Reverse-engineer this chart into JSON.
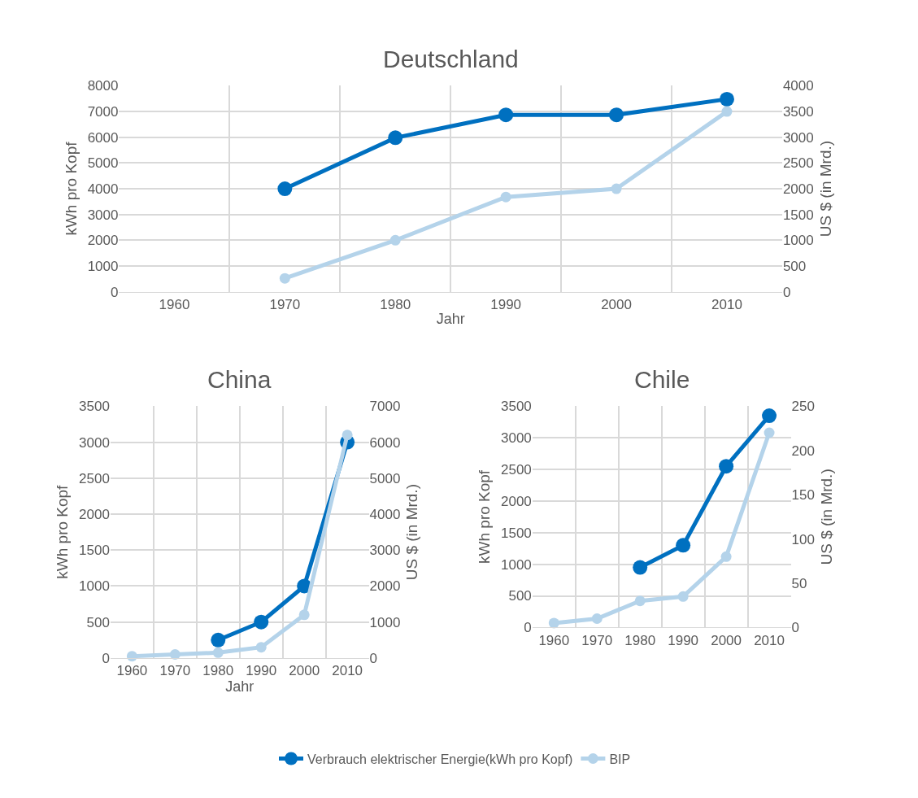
{
  "chart_data": [
    {
      "type": "line",
      "title": "Deutschland",
      "xlabel": "Jahr",
      "ylabel": "kWh pro Kopf",
      "y2label": "US $ (in Mrd.)",
      "categories": [
        "1960",
        "1970",
        "1980",
        "1990",
        "2000",
        "2010"
      ],
      "series": [
        {
          "name": "Verbrauch elektrischer Energie(kWh pro Kopf)",
          "color": "#0070c0",
          "values": [
            null,
            4000,
            5980,
            6870,
            6870,
            7480
          ]
        },
        {
          "name": "BIP",
          "color": "#b4d3ea",
          "axis": "y2",
          "values": [
            null,
            260,
            1000,
            1840,
            2000,
            3500
          ]
        }
      ],
      "ylim": [
        0,
        8000
      ],
      "yticks": [
        0,
        1000,
        2000,
        3000,
        4000,
        5000,
        6000,
        7000,
        8000
      ],
      "y2lim": [
        0,
        4000
      ],
      "y2ticks": [
        0,
        500,
        1000,
        1500,
        2000,
        2500,
        3000,
        3500,
        4000
      ],
      "grid": true,
      "marker": "circle",
      "legend": "bottom"
    },
    {
      "type": "line",
      "title": "China",
      "xlabel": "Jahr",
      "ylabel": "kWh pro Kopf",
      "y2label": "US $ (in Mrd.)",
      "categories": [
        "1960",
        "1970",
        "1980",
        "1990",
        "2000",
        "2010"
      ],
      "series": [
        {
          "color": "#0070c0",
          "values": [
            null,
            null,
            250,
            500,
            1000,
            3000
          ]
        },
        {
          "color": "#b4d3ea",
          "axis": "y2",
          "values": [
            50,
            100,
            150,
            300,
            1200,
            6200
          ]
        }
      ],
      "ylim": [
        0,
        3500
      ],
      "yticks": [
        0,
        500,
        1000,
        1500,
        2000,
        2500,
        3000,
        3500
      ],
      "y2lim": [
        0,
        7000
      ],
      "y2ticks": [
        0,
        1000,
        2000,
        3000,
        4000,
        5000,
        6000,
        7000
      ],
      "grid": true,
      "marker": "circle"
    },
    {
      "type": "line",
      "title": "Chile",
      "ylabel": "kWh pro Kopf",
      "y2label": "US $ (in Mrd.)",
      "categories": [
        "1960",
        "1970",
        "1980",
        "1990",
        "2000",
        "2010"
      ],
      "series": [
        {
          "color": "#0070c0",
          "values": [
            null,
            null,
            950,
            1300,
            2550,
            3350
          ]
        },
        {
          "color": "#b4d3ea",
          "axis": "y2",
          "values": [
            5,
            10,
            30,
            35,
            80,
            220
          ]
        }
      ],
      "ylim": [
        0,
        3500
      ],
      "yticks": [
        0,
        500,
        1000,
        1500,
        2000,
        2500,
        3000,
        3500
      ],
      "y2lim": [
        0,
        250
      ],
      "y2ticks": [
        0,
        50,
        100,
        150,
        200,
        250
      ],
      "grid": true,
      "marker": "circle"
    }
  ]
}
